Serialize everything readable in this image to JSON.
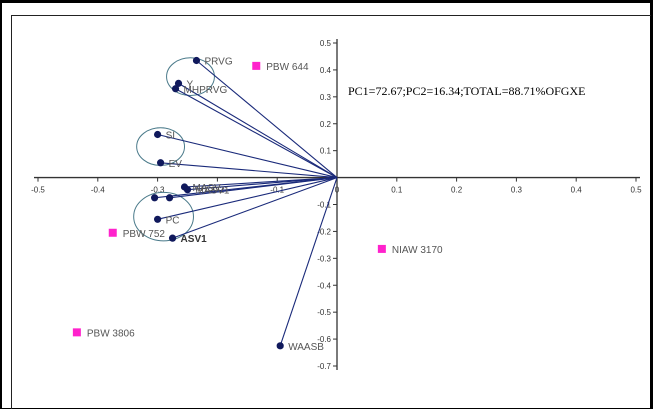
{
  "chart_data": {
    "type": "scatter",
    "title": "",
    "annotation": "PC1=72.67;PC2=16.34;TOTAL=88.71%OFGXE",
    "xlim": [
      -0.5,
      0.5
    ],
    "ylim": [
      -0.7,
      0.5
    ],
    "x_ticks": [
      -0.5,
      -0.4,
      -0.3,
      -0.2,
      -0.1,
      0,
      0.1,
      0.2,
      0.3,
      0.4,
      0.5
    ],
    "x_tick_labels": [
      "-0.5",
      "-0.4",
      "-0.3",
      "-0.2",
      "-0.1",
      "0",
      "0.1",
      "0.2",
      "0.3",
      "0.4",
      "0.5"
    ],
    "y_ticks": [
      0.5,
      0.4,
      0.3,
      0.2,
      0.1,
      0,
      -0.1,
      -0.2,
      -0.3,
      -0.4,
      -0.5,
      -0.6,
      -0.7
    ],
    "y_tick_labels": [
      "0.5",
      "0.4",
      "0.3",
      "0.2",
      "0.1",
      "",
      "-0.1",
      "-0.2",
      "-0.3",
      "-0.4",
      "-0.5",
      "-0.6",
      "-0.7"
    ],
    "grid": false,
    "vectors": [
      {
        "label": "PRVG",
        "x": -0.235,
        "y": 0.435,
        "bold": false
      },
      {
        "label": "Y",
        "x": -0.265,
        "y": 0.35,
        "bold": false
      },
      {
        "label": "MHPRVG",
        "x": -0.27,
        "y": 0.33,
        "bold": false
      },
      {
        "label": "SI",
        "x": -0.3,
        "y": 0.16,
        "bold": false
      },
      {
        "label": "EV",
        "x": -0.295,
        "y": 0.055,
        "bold": false
      },
      {
        "label": "MASV",
        "x": -0.255,
        "y": -0.035,
        "bold": false
      },
      {
        "label": "MASV1",
        "x": -0.25,
        "y": -0.045,
        "bold": false
      },
      {
        "label": "",
        "x": -0.28,
        "y": -0.075,
        "bold": false
      },
      {
        "label": "",
        "x": -0.305,
        "y": -0.075,
        "bold": false
      },
      {
        "label": "PC",
        "x": -0.3,
        "y": -0.155,
        "bold": false
      },
      {
        "label": "ASV1",
        "x": -0.275,
        "y": -0.225,
        "bold": true
      },
      {
        "label": "WAASB",
        "x": -0.095,
        "y": -0.625,
        "bold": false
      }
    ],
    "genotypes": [
      {
        "label": "PBW 644",
        "x": -0.135,
        "y": 0.415
      },
      {
        "label": "PBW 752",
        "x": -0.375,
        "y": -0.205
      },
      {
        "label": "NIAW 3170",
        "x": 0.075,
        "y": -0.265
      },
      {
        "label": "PBW 3806",
        "x": -0.435,
        "y": -0.575
      }
    ],
    "clusters": [
      {
        "cx": -0.245,
        "cy": 0.375,
        "rx": 0.04,
        "ry": 0.07
      },
      {
        "cx": -0.295,
        "cy": 0.115,
        "rx": 0.04,
        "ry": 0.07
      },
      {
        "cx": -0.29,
        "cy": -0.145,
        "rx": 0.05,
        "ry": 0.09
      }
    ],
    "colors": {
      "vector": "#1a2a7a",
      "point": "#10195c",
      "genotype": "#ff22cc",
      "cluster": "#4a7a8a"
    }
  }
}
